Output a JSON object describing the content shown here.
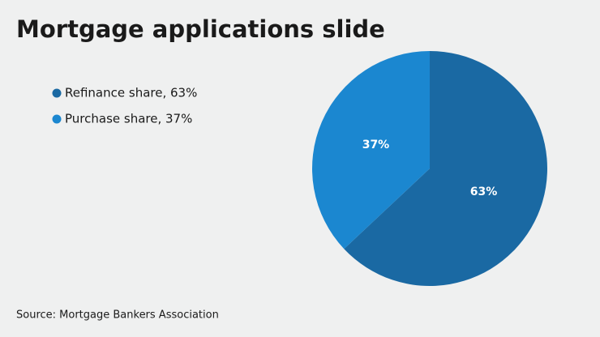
{
  "chart_data": {
    "type": "pie",
    "title": "Mortgage applications slide",
    "categories": [
      "Refinance share, 63%",
      "Purchase share, 37%"
    ],
    "values": [
      63,
      37
    ],
    "value_labels": [
      "63%",
      "37%"
    ],
    "colors": [
      "#1a69a3",
      "#1b87d0"
    ],
    "source": "Source: Mortgage Bankers Association"
  }
}
